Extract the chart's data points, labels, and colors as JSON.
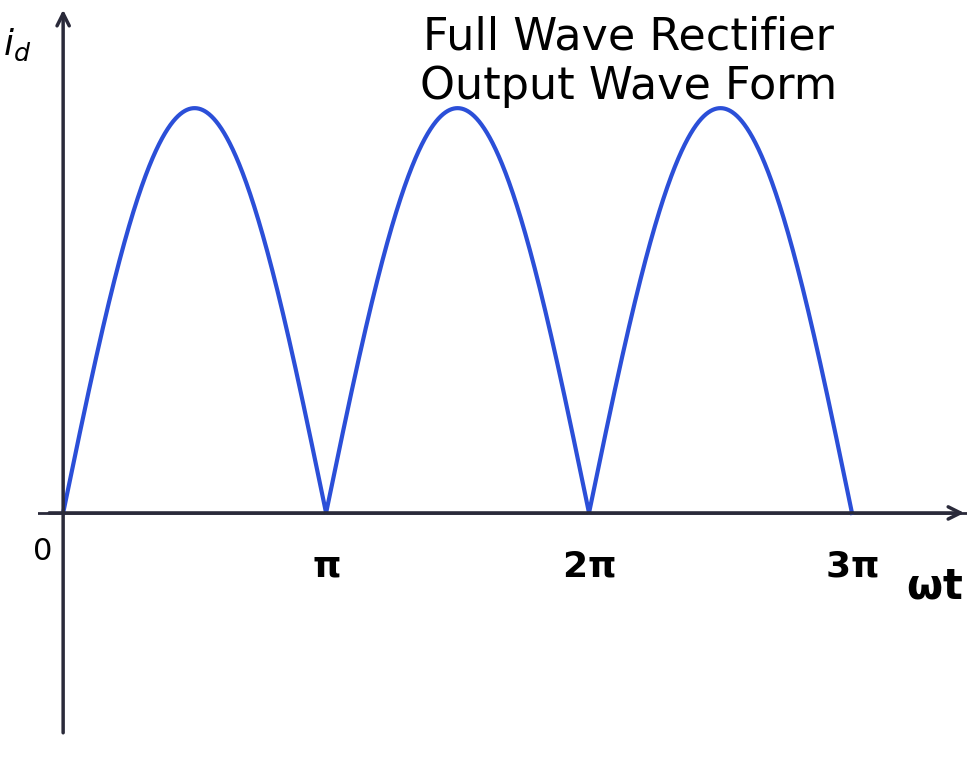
{
  "title_line1": "Full Wave Rectifier",
  "title_line2": "Output Wave Form",
  "title_fontsize": 32,
  "xlabel": "ωt",
  "ylabel": "$i_d$",
  "wave_color": "#2b4fd8",
  "wave_linewidth": 3.0,
  "background_color": "#ffffff",
  "axis_color": "#2a2a3a",
  "x_tick_labels": [
    "π",
    "2π",
    "3π"
  ],
  "x_tick_positions": [
    3.14159265,
    6.2831853,
    9.42477796
  ],
  "x_min": -0.3,
  "x_max": 10.8,
  "y_min": -0.65,
  "y_max": 1.25,
  "amplitude": 1.0,
  "num_points": 2000,
  "zero_label": "0",
  "zero_fontsize": 22,
  "tick_fontsize": 26,
  "xlabel_fontsize": 30,
  "ylabel_fontsize": 26,
  "arrow_color": "#2a2a3a"
}
